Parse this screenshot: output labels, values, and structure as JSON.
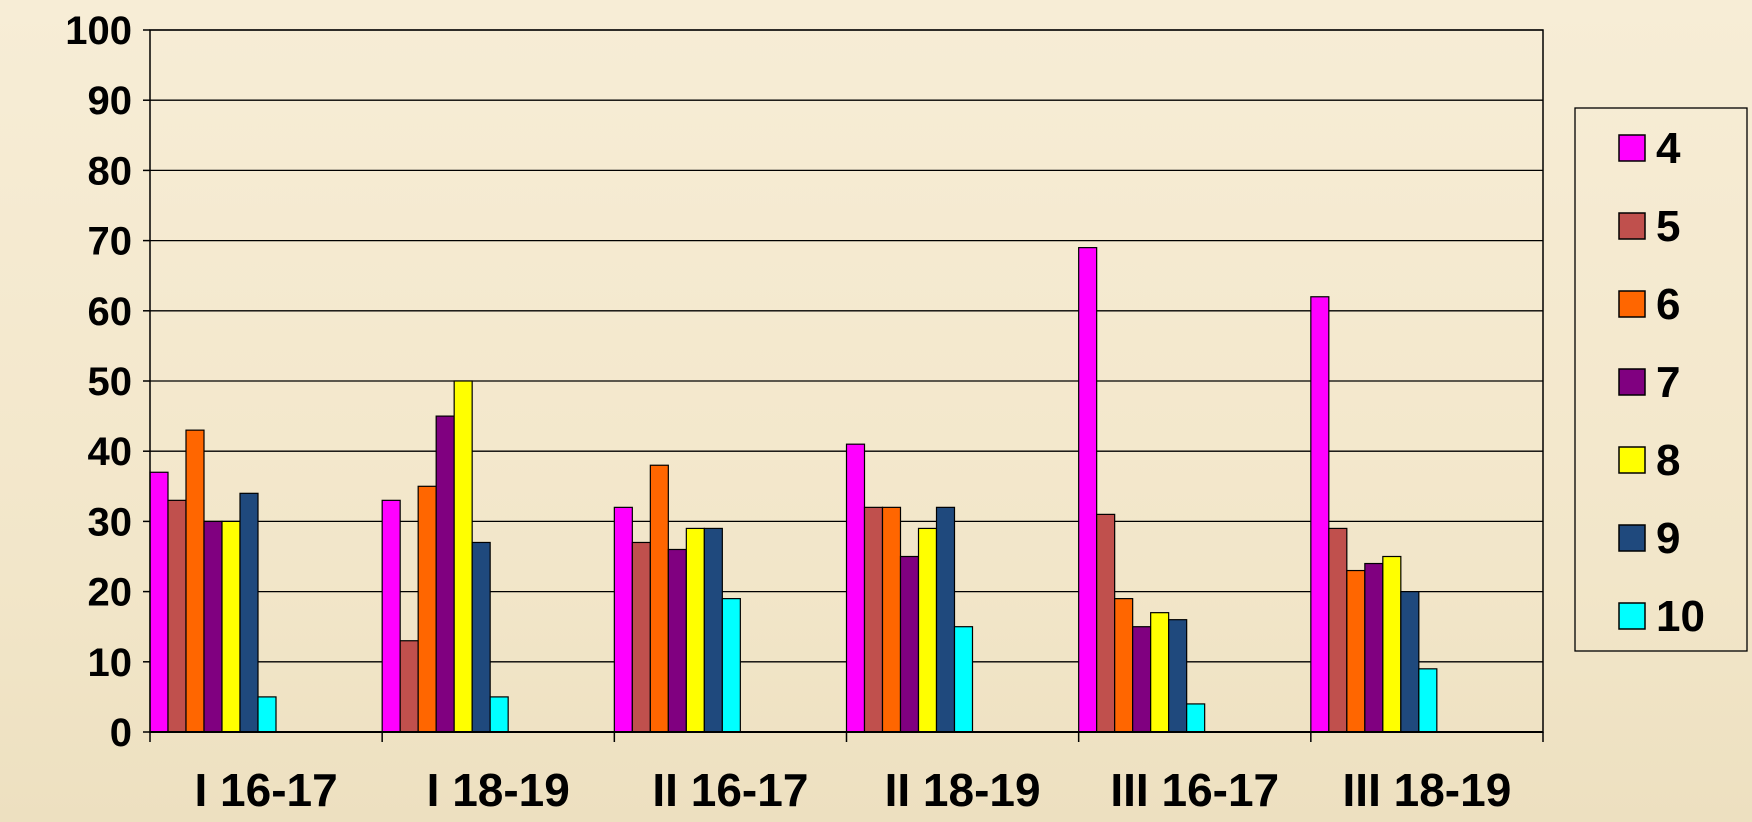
{
  "chart_data": {
    "type": "bar",
    "title": "",
    "xlabel": "",
    "ylabel": "",
    "ylim": [
      0,
      100
    ],
    "yticks": [
      "0",
      "10",
      "20",
      "30",
      "40",
      "50",
      "60",
      "70",
      "80",
      "90",
      "100"
    ],
    "grid": true,
    "legend_position": "right",
    "categories": [
      "I 16-17",
      "I 18-19",
      "II 16-17",
      "II 18-19",
      "III 16-17",
      "III 18-19"
    ],
    "series": [
      {
        "name": "4",
        "color": "#ff00ff",
        "values": [
          37,
          33,
          32,
          41,
          69,
          62
        ]
      },
      {
        "name": "5",
        "color": "#c0504d",
        "values": [
          33,
          13,
          27,
          32,
          31,
          29
        ]
      },
      {
        "name": "6",
        "color": "#ff6600",
        "values": [
          43,
          35,
          38,
          32,
          19,
          23
        ]
      },
      {
        "name": "7",
        "color": "#800080",
        "values": [
          30,
          45,
          26,
          25,
          15,
          24
        ]
      },
      {
        "name": "8",
        "color": "#ffff00",
        "values": [
          30,
          50,
          29,
          29,
          17,
          25
        ]
      },
      {
        "name": "9",
        "color": "#1f497d",
        "values": [
          34,
          27,
          29,
          32,
          16,
          20
        ]
      },
      {
        "name": "10",
        "color": "#00ffff",
        "values": [
          5,
          5,
          19,
          15,
          4,
          9
        ]
      }
    ]
  }
}
